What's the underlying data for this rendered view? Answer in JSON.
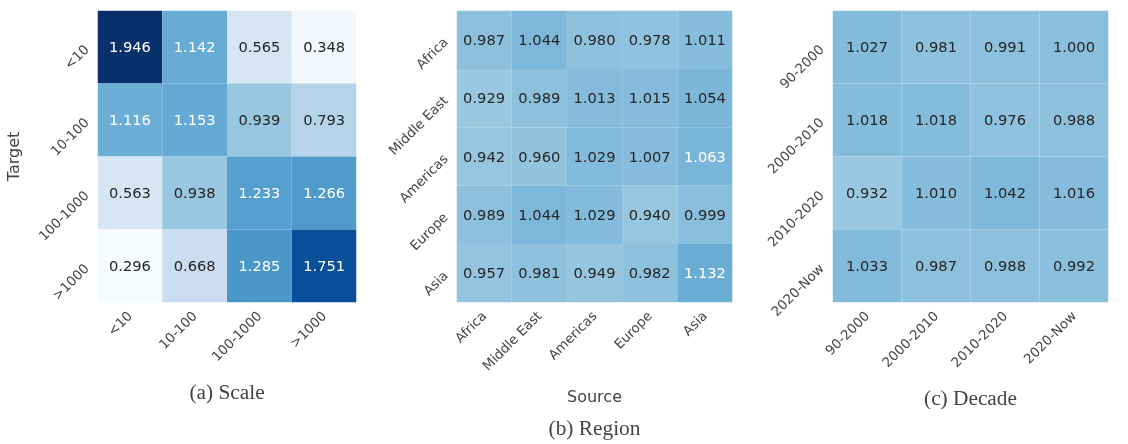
{
  "chart_data": [
    {
      "type": "heatmap",
      "title": "(a) Scale",
      "ylabel": "Target",
      "categories": [
        "<10",
        "10-100",
        "100-1000",
        ">1000"
      ],
      "y_categories": [
        "<10",
        "10-100",
        "100-1000",
        ">1000"
      ],
      "cells": [
        [
          1.946,
          1.142,
          0.565,
          0.348
        ],
        [
          1.116,
          1.153,
          0.939,
          0.793
        ],
        [
          0.563,
          0.938,
          1.233,
          1.266
        ],
        [
          0.296,
          0.668,
          1.285,
          1.751
        ]
      ],
      "data_labels": true
    },
    {
      "type": "heatmap",
      "title": "(b) Region",
      "xlabel": "Source",
      "categories": [
        "Africa",
        "Middle East",
        "Americas",
        "Europe",
        "Asia"
      ],
      "y_categories": [
        "Africa",
        "Middle East",
        "Americas",
        "Europe",
        "Asia"
      ],
      "cells": [
        [
          0.987,
          1.044,
          0.98,
          0.978,
          1.011
        ],
        [
          0.929,
          0.989,
          1.013,
          1.015,
          1.054
        ],
        [
          0.942,
          0.96,
          1.029,
          1.007,
          1.063
        ],
        [
          0.989,
          1.044,
          1.029,
          0.94,
          0.999
        ],
        [
          0.957,
          0.981,
          0.949,
          0.982,
          1.132
        ]
      ],
      "cell_labels": [
        [
          "0.987",
          "1.044",
          "0.980",
          "0.978",
          "1.011"
        ],
        [
          "0.929",
          "0.989",
          "1.013",
          "1.015",
          "1.054"
        ],
        [
          "0.942",
          "0.960",
          "1.029",
          "1.007",
          "1.063"
        ],
        [
          "0.989",
          "1.044",
          "1.029",
          "0.940",
          "0.999"
        ],
        [
          "0.957",
          "0.981",
          "0.949",
          "0.982",
          "1.132"
        ]
      ],
      "data_labels": true
    },
    {
      "type": "heatmap",
      "title": "(c) Decade",
      "categories": [
        "90-2000",
        "2000-2010",
        "2010-2020",
        "2020-Now"
      ],
      "y_categories": [
        "90-2000",
        "2000-2010",
        "2010-2020",
        "2020-Now"
      ],
      "cells": [
        [
          1.027,
          0.981,
          0.991,
          1.0
        ],
        [
          1.018,
          1.018,
          0.976,
          0.988
        ],
        [
          0.932,
          1.01,
          1.042,
          1.016
        ],
        [
          1.033,
          0.987,
          0.988,
          0.992
        ]
      ],
      "cell_labels": [
        [
          "1.027",
          "0.981",
          "0.991",
          "1.000"
        ],
        [
          "1.018",
          "1.018",
          "0.976",
          "0.988"
        ],
        [
          "0.932",
          "1.010",
          "1.042",
          "1.016"
        ],
        [
          "1.033",
          "0.987",
          "0.988",
          "0.992"
        ]
      ],
      "data_labels": true
    }
  ]
}
